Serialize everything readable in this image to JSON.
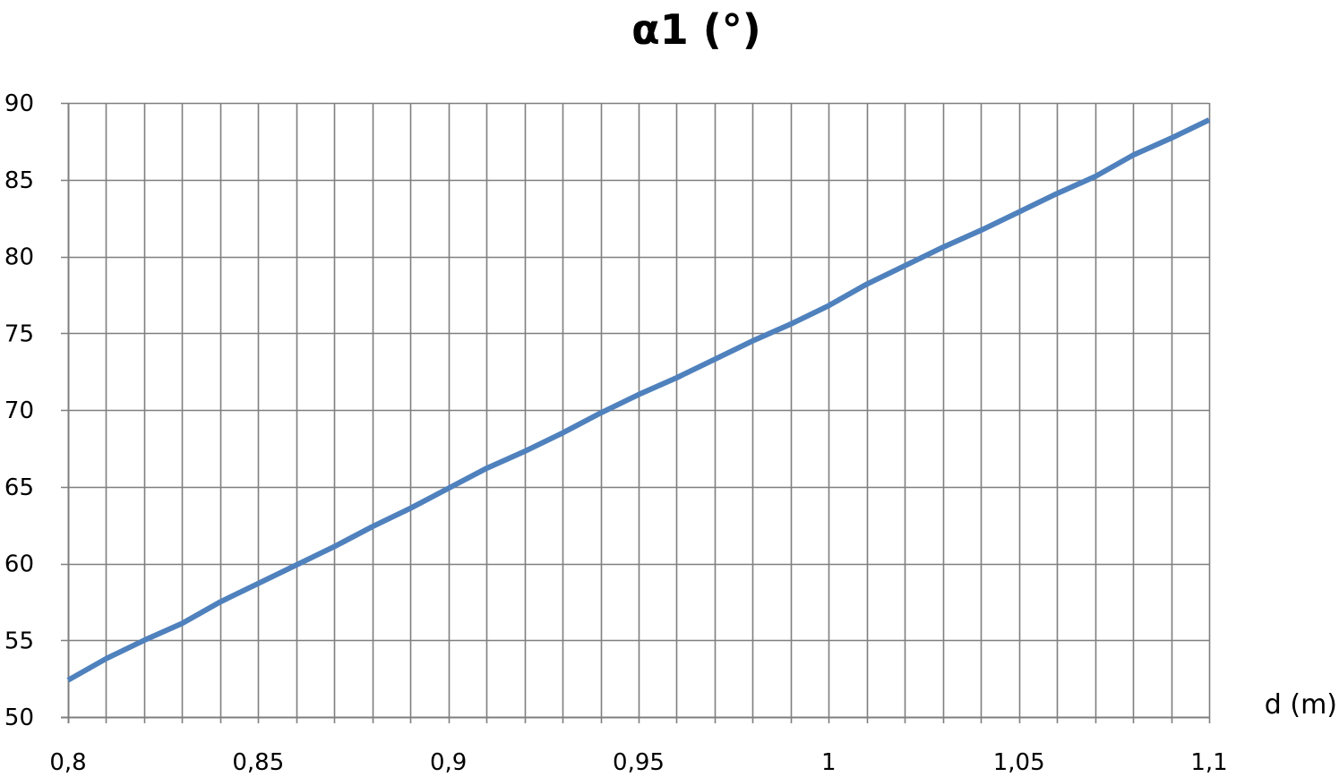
{
  "chart_data": {
    "type": "line",
    "title": "α1 (°)",
    "xlabel": "d (m)",
    "ylabel": "",
    "xlim": [
      0.8,
      1.1
    ],
    "ylim": [
      50,
      90
    ],
    "x_tick_step": 0.01,
    "y_tick_step": 5,
    "x_tick_labels": [
      {
        "value": 0.8,
        "label": "0,8"
      },
      {
        "value": 0.85,
        "label": "0,85"
      },
      {
        "value": 0.9,
        "label": "0,9"
      },
      {
        "value": 0.95,
        "label": "0,95"
      },
      {
        "value": 1.0,
        "label": "1"
      },
      {
        "value": 1.05,
        "label": "1,05"
      },
      {
        "value": 1.1,
        "label": "1,1"
      }
    ],
    "y_tick_labels": [
      {
        "value": 50,
        "label": "50"
      },
      {
        "value": 55,
        "label": "55"
      },
      {
        "value": 60,
        "label": "60"
      },
      {
        "value": 65,
        "label": "65"
      },
      {
        "value": 70,
        "label": "70"
      },
      {
        "value": 75,
        "label": "75"
      },
      {
        "value": 80,
        "label": "80"
      },
      {
        "value": 85,
        "label": "85"
      },
      {
        "value": 90,
        "label": "90"
      }
    ],
    "grid": true,
    "legend": "none",
    "colors": {
      "line": "#4f81bd",
      "grid": "#7f7f7f",
      "axis": "#7f7f7f"
    },
    "series": [
      {
        "x": [
          0.8,
          0.81,
          0.82,
          0.83,
          0.84,
          0.85,
          0.86,
          0.87,
          0.88,
          0.89,
          0.9,
          0.91,
          0.92,
          0.93,
          0.94,
          0.95,
          0.96,
          0.97,
          0.98,
          0.99,
          1.0,
          1.01,
          1.02,
          1.03,
          1.04,
          1.05,
          1.06,
          1.07,
          1.08,
          1.09,
          1.1
        ],
        "y": [
          52.4,
          53.8,
          55.0,
          56.1,
          57.5,
          58.7,
          59.9,
          61.1,
          62.4,
          63.6,
          64.9,
          66.2,
          67.3,
          68.5,
          69.8,
          71.0,
          72.1,
          73.3,
          74.5,
          75.6,
          76.8,
          78.2,
          79.4,
          80.6,
          81.7,
          82.9,
          84.1,
          85.2,
          86.6,
          87.7,
          88.9
        ]
      }
    ]
  }
}
